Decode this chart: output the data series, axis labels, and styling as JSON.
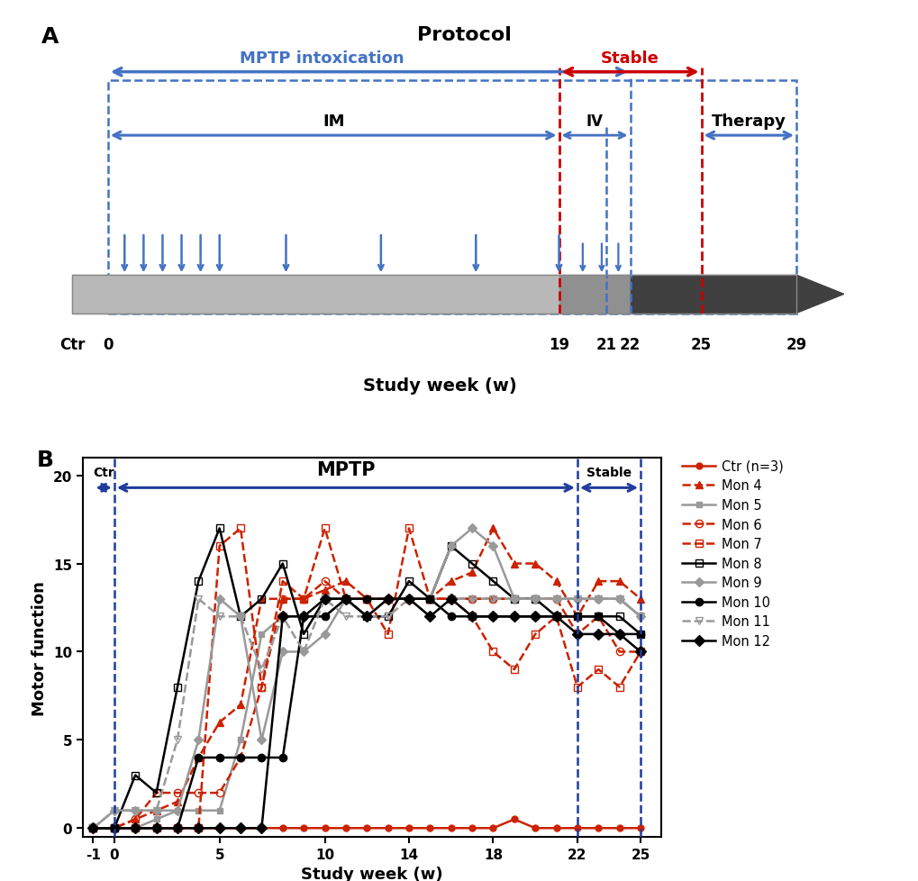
{
  "panel_a": {
    "title": "Protocol",
    "timeline_label": "Study week (w)",
    "blue_color": "#4472C4",
    "red_color": "#CC0000",
    "blue_arrow": "#3050B0",
    "mptp_intox_label": "MPTP intoxication",
    "stable_label": "Stable",
    "therapy_label": "Therapy",
    "im_label": "IM",
    "iv_label": "IV",
    "week_labels": [
      "Ctr",
      "0",
      "19",
      "21",
      "22",
      "25",
      "29"
    ],
    "week_positions": [
      -1.5,
      0,
      19,
      21,
      22,
      25,
      29
    ],
    "im_injections": [
      0.7,
      1.5,
      2.3,
      3.1,
      3.9,
      4.7,
      7.5,
      11.5,
      15.5,
      19.0
    ],
    "iv_injections": [
      20.0,
      20.8,
      21.5
    ]
  },
  "panel_b": {
    "xlabel": "Study week (w)",
    "ylabel": "Motor function",
    "yticks": [
      0,
      5,
      10,
      15,
      20
    ],
    "xticks": [
      -1,
      0,
      5,
      10,
      14,
      18,
      22,
      25
    ],
    "xtick_labels": [
      "-1",
      "0",
      "5",
      "10",
      "14",
      "18",
      "22",
      "25"
    ],
    "blue_color": "#1f3d9c",
    "series": {
      "Ctr (n=3)": {
        "color": "#CC2200",
        "linestyle": "solid",
        "marker": "o",
        "markersize": 5,
        "linewidth": 1.8,
        "open_marker": false,
        "dashed": false,
        "weeks": [
          -1,
          0,
          1,
          2,
          3,
          4,
          5,
          6,
          7,
          8,
          9,
          10,
          11,
          12,
          13,
          14,
          15,
          16,
          17,
          18,
          19,
          20,
          21,
          22,
          23,
          24,
          25
        ],
        "values": [
          0,
          0,
          0,
          0,
          0,
          0,
          0,
          0,
          0,
          0,
          0,
          0,
          0,
          0,
          0,
          0,
          0,
          0,
          0,
          0,
          0.5,
          0,
          0,
          0,
          0,
          0,
          0
        ]
      },
      "Mon 4": {
        "color": "#CC2200",
        "linestyle": "dashed",
        "marker": "^",
        "markersize": 6,
        "linewidth": 1.8,
        "open_marker": false,
        "dashed": true,
        "weeks": [
          -1,
          0,
          1,
          2,
          3,
          4,
          5,
          6,
          7,
          8,
          9,
          10,
          11,
          12,
          13,
          14,
          15,
          16,
          17,
          18,
          19,
          20,
          21,
          22,
          23,
          24,
          25
        ],
        "values": [
          0,
          0,
          0.5,
          1,
          1.5,
          4,
          6,
          7,
          13,
          13,
          13,
          13.5,
          14,
          13,
          13,
          13,
          13,
          14,
          14.5,
          17,
          15,
          15,
          14,
          12,
          14,
          14,
          13
        ]
      },
      "Mon 5": {
        "color": "#999999",
        "linestyle": "solid",
        "marker": "s",
        "markersize": 5,
        "linewidth": 1.8,
        "open_marker": false,
        "dashed": false,
        "weeks": [
          -1,
          0,
          1,
          2,
          3,
          4,
          5,
          6,
          7,
          8,
          9,
          10,
          11,
          12,
          13,
          14,
          15,
          16,
          17,
          18,
          19,
          20,
          21,
          22,
          23,
          24,
          25
        ],
        "values": [
          0,
          0,
          0,
          0.5,
          1,
          1,
          1,
          5,
          11,
          12,
          12,
          12,
          13,
          13,
          13,
          13,
          13,
          13,
          13,
          13,
          13,
          13,
          13,
          13,
          13,
          13,
          12
        ]
      },
      "Mon 6": {
        "color": "#CC2200",
        "linestyle": "dashed",
        "marker": "o",
        "markersize": 6,
        "linewidth": 1.8,
        "open_marker": true,
        "dashed": true,
        "weeks": [
          -1,
          0,
          1,
          2,
          3,
          4,
          5,
          6,
          7,
          8,
          9,
          10,
          11,
          12,
          13,
          14,
          15,
          16,
          17,
          18,
          19,
          20,
          21,
          22,
          23,
          24,
          25
        ],
        "values": [
          0,
          0,
          0.5,
          2,
          2,
          2,
          2,
          4,
          8,
          13,
          13,
          14,
          13,
          13,
          13,
          13,
          13,
          13,
          13,
          13,
          13,
          13,
          13,
          11,
          12,
          10,
          10
        ]
      },
      "Mon 7": {
        "color": "#CC2200",
        "linestyle": "dashed",
        "marker": "s",
        "markersize": 6,
        "linewidth": 1.8,
        "open_marker": true,
        "dashed": true,
        "weeks": [
          -1,
          0,
          1,
          2,
          3,
          4,
          5,
          6,
          7,
          8,
          9,
          10,
          11,
          12,
          13,
          14,
          15,
          16,
          17,
          18,
          19,
          20,
          21,
          22,
          23,
          24,
          25
        ],
        "values": [
          0,
          0,
          0,
          0,
          0,
          0,
          16,
          17,
          8,
          14,
          13,
          17,
          13,
          13,
          11,
          17,
          13,
          13,
          12,
          10,
          9,
          11,
          12,
          8,
          9,
          8,
          10
        ]
      },
      "Mon 8": {
        "color": "#000000",
        "linestyle": "solid",
        "marker": "s",
        "markersize": 6,
        "linewidth": 1.8,
        "open_marker": true,
        "dashed": false,
        "weeks": [
          -1,
          0,
          1,
          2,
          3,
          4,
          5,
          6,
          7,
          8,
          9,
          10,
          11,
          12,
          13,
          14,
          15,
          16,
          17,
          18,
          19,
          20,
          21,
          22,
          23,
          24,
          25
        ],
        "values": [
          0,
          0,
          3,
          2,
          8,
          14,
          17,
          12,
          13,
          15,
          11,
          13,
          13,
          12,
          12,
          14,
          13,
          16,
          15,
          14,
          13,
          13,
          12,
          12,
          12,
          12,
          11
        ]
      },
      "Mon 9": {
        "color": "#999999",
        "linestyle": "solid",
        "marker": "D",
        "markersize": 5,
        "linewidth": 1.8,
        "open_marker": false,
        "dashed": false,
        "weeks": [
          -1,
          0,
          1,
          2,
          3,
          4,
          5,
          6,
          7,
          8,
          9,
          10,
          11,
          12,
          13,
          14,
          15,
          16,
          17,
          18,
          19,
          20,
          21,
          22,
          23,
          24,
          25
        ],
        "values": [
          0,
          1,
          1,
          1,
          1,
          5,
          13,
          12,
          5,
          10,
          10,
          11,
          13,
          12,
          13,
          13,
          13,
          16,
          17,
          16,
          13,
          13,
          13,
          13,
          13,
          13,
          12
        ]
      },
      "Mon 10": {
        "color": "#000000",
        "linestyle": "solid",
        "marker": "o",
        "markersize": 6,
        "linewidth": 1.8,
        "open_marker": false,
        "dashed": false,
        "weeks": [
          -1,
          0,
          1,
          2,
          3,
          4,
          5,
          6,
          7,
          8,
          9,
          10,
          11,
          12,
          13,
          14,
          15,
          16,
          17,
          18,
          19,
          20,
          21,
          22,
          23,
          24,
          25
        ],
        "values": [
          0,
          0,
          0,
          0,
          0,
          4,
          4,
          4,
          4,
          4,
          12,
          12,
          13,
          13,
          13,
          13,
          13,
          12,
          12,
          12,
          12,
          12,
          12,
          12,
          12,
          11,
          11
        ]
      },
      "Mon 11": {
        "color": "#999999",
        "linestyle": "dashed",
        "marker": "v",
        "markersize": 6,
        "linewidth": 1.8,
        "open_marker": true,
        "dashed": true,
        "weeks": [
          -1,
          0,
          1,
          2,
          3,
          4,
          5,
          6,
          7,
          8,
          9,
          10,
          11,
          12,
          13,
          14,
          15,
          16,
          17,
          18,
          19,
          20,
          21,
          22,
          23,
          24,
          25
        ],
        "values": [
          0,
          1,
          1,
          1,
          5,
          13,
          12,
          12,
          9,
          12,
          10,
          13,
          12,
          12,
          12,
          13,
          12,
          13,
          13,
          13,
          13,
          13,
          13,
          13,
          13,
          13,
          12
        ]
      },
      "Mon 12": {
        "color": "#000000",
        "linestyle": "solid",
        "marker": "D",
        "markersize": 6,
        "linewidth": 1.8,
        "open_marker": false,
        "dashed": false,
        "weeks": [
          -1,
          0,
          1,
          2,
          3,
          4,
          5,
          6,
          7,
          8,
          9,
          10,
          11,
          12,
          13,
          14,
          15,
          16,
          17,
          18,
          19,
          20,
          21,
          22,
          23,
          24,
          25
        ],
        "values": [
          0,
          0,
          0,
          0,
          0,
          0,
          0,
          0,
          0,
          12,
          12,
          13,
          13,
          12,
          13,
          13,
          12,
          13,
          12,
          12,
          12,
          12,
          12,
          11,
          11,
          11,
          10
        ]
      }
    },
    "series_order": [
      "Ctr (n=3)",
      "Mon 4",
      "Mon 5",
      "Mon 6",
      "Mon 7",
      "Mon 8",
      "Mon 9",
      "Mon 10",
      "Mon 11",
      "Mon 12"
    ]
  }
}
